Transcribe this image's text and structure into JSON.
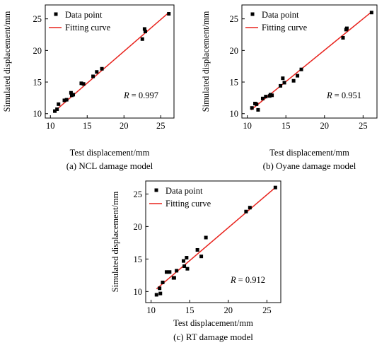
{
  "chart_data": [
    {
      "type": "scatter",
      "caption": "(a) NCL damage model",
      "xlabel": "Test displacement/mm",
      "ylabel": "Simulated displacement/mm",
      "xlim": [
        9.3,
        26.8
      ],
      "ylim": [
        9.3,
        27.2
      ],
      "xticks": [
        10,
        15,
        20,
        25
      ],
      "yticks": [
        10,
        15,
        20,
        25
      ],
      "legend": {
        "position": "top-left",
        "point_label": "Data point",
        "line_label": "Fitting curve"
      },
      "r_label": "R",
      "r_value": "= 0.997",
      "points": [
        {
          "x": 10.6,
          "y": 10.4
        },
        {
          "x": 10.9,
          "y": 10.7
        },
        {
          "x": 11.1,
          "y": 11.5
        },
        {
          "x": 11.9,
          "y": 12.1
        },
        {
          "x": 12.2,
          "y": 12.2
        },
        {
          "x": 12.8,
          "y": 13.3
        },
        {
          "x": 12.9,
          "y": 12.9
        },
        {
          "x": 13.1,
          "y": 13.0
        },
        {
          "x": 14.2,
          "y": 14.8
        },
        {
          "x": 14.5,
          "y": 14.7
        },
        {
          "x": 15.8,
          "y": 15.9
        },
        {
          "x": 16.3,
          "y": 16.6
        },
        {
          "x": 17.0,
          "y": 17.1
        },
        {
          "x": 22.5,
          "y": 21.8
        },
        {
          "x": 22.8,
          "y": 23.4
        },
        {
          "x": 22.9,
          "y": 23.0
        },
        {
          "x": 26.1,
          "y": 25.8
        }
      ],
      "fit": {
        "x": [
          10.5,
          26.1
        ],
        "y": [
          10.3,
          26.0
        ]
      },
      "colors": {
        "points": "#000000",
        "fit": "#e8231d"
      }
    },
    {
      "type": "scatter",
      "caption": "(b) Oyane damage model",
      "xlabel": "Test displacement/mm",
      "ylabel": "Simulated displacement/mm",
      "xlim": [
        9.3,
        26.8
      ],
      "ylim": [
        9.3,
        27.2
      ],
      "xticks": [
        10,
        15,
        20,
        25
      ],
      "yticks": [
        10,
        15,
        20,
        25
      ],
      "legend": {
        "position": "top-left",
        "point_label": "Data point",
        "line_label": "Fitting curve"
      },
      "r_label": "R",
      "r_value": "= 0.951",
      "points": [
        {
          "x": 10.6,
          "y": 10.9
        },
        {
          "x": 11.0,
          "y": 11.6
        },
        {
          "x": 11.2,
          "y": 11.5
        },
        {
          "x": 11.4,
          "y": 10.6
        },
        {
          "x": 12.0,
          "y": 12.4
        },
        {
          "x": 12.4,
          "y": 12.7
        },
        {
          "x": 12.9,
          "y": 12.8
        },
        {
          "x": 13.0,
          "y": 13.0
        },
        {
          "x": 13.2,
          "y": 12.9
        },
        {
          "x": 14.3,
          "y": 14.4
        },
        {
          "x": 14.6,
          "y": 15.6
        },
        {
          "x": 14.8,
          "y": 14.9
        },
        {
          "x": 16.0,
          "y": 15.2
        },
        {
          "x": 16.5,
          "y": 16.0
        },
        {
          "x": 17.0,
          "y": 17.0
        },
        {
          "x": 22.4,
          "y": 22.0
        },
        {
          "x": 22.8,
          "y": 23.3
        },
        {
          "x": 22.9,
          "y": 23.5
        },
        {
          "x": 26.1,
          "y": 26.0
        }
      ],
      "fit": {
        "x": [
          10.5,
          26.1
        ],
        "y": [
          10.6,
          26.1
        ]
      },
      "colors": {
        "points": "#000000",
        "fit": "#e8231d"
      }
    },
    {
      "type": "scatter",
      "caption": "(c) RT damage model",
      "xlabel": "Test displacement/mm",
      "ylabel": "Simulated displacement/mm",
      "xlim": [
        9.3,
        26.8
      ],
      "ylim": [
        8.3,
        27.0
      ],
      "xticks": [
        10,
        15,
        20,
        25
      ],
      "yticks": [
        10,
        15,
        20,
        25
      ],
      "legend": {
        "position": "top-left",
        "point_label": "Data point",
        "line_label": "Fitting curve"
      },
      "r_label": "R",
      "r_value": "= 0.912",
      "points": [
        {
          "x": 10.7,
          "y": 9.5
        },
        {
          "x": 11.1,
          "y": 10.5
        },
        {
          "x": 11.2,
          "y": 9.7
        },
        {
          "x": 11.5,
          "y": 11.4
        },
        {
          "x": 12.0,
          "y": 13.0
        },
        {
          "x": 12.4,
          "y": 13.0
        },
        {
          "x": 12.9,
          "y": 12.1
        },
        {
          "x": 13.0,
          "y": 12.1
        },
        {
          "x": 13.3,
          "y": 13.2
        },
        {
          "x": 14.2,
          "y": 14.7
        },
        {
          "x": 14.3,
          "y": 13.9
        },
        {
          "x": 14.6,
          "y": 15.2
        },
        {
          "x": 14.7,
          "y": 13.5
        },
        {
          "x": 16.0,
          "y": 16.4
        },
        {
          "x": 16.5,
          "y": 15.4
        },
        {
          "x": 17.1,
          "y": 18.3
        },
        {
          "x": 22.3,
          "y": 22.3
        },
        {
          "x": 22.8,
          "y": 22.9
        },
        {
          "x": 26.1,
          "y": 26.0
        }
      ],
      "fit": {
        "x": [
          10.7,
          26.1
        ],
        "y": [
          10.4,
          26.0
        ]
      },
      "colors": {
        "points": "#000000",
        "fit": "#e8231d"
      }
    }
  ]
}
